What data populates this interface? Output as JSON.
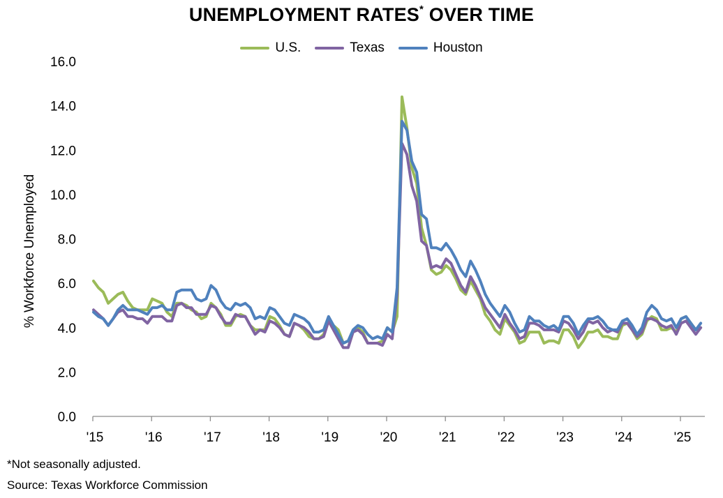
{
  "title": "UNEMPLOYMENT RATES",
  "title_sup": "*",
  "title_suffix": " OVER TIME",
  "footnote": "*Not seasonally adjusted.",
  "source": "Source: Texas Workforce Commission",
  "colors": {
    "us": "#9bbb59",
    "texas": "#8064a2",
    "houston": "#4f81bd"
  },
  "chart_data": {
    "type": "line",
    "ylabel": "% Workforce Unemployed",
    "ylim": [
      0,
      16
    ],
    "yticks": [
      "0.0",
      "2.0",
      "4.0",
      "6.0",
      "8.0",
      "10.0",
      "12.0",
      "14.0",
      "16.0"
    ],
    "xticks": [
      "'15",
      "'16",
      "'17",
      "'18",
      "'19",
      "'20",
      "'21",
      "'22",
      "'23",
      "'24",
      "'25"
    ],
    "x_start": "2015-01",
    "x_end": "2025-05",
    "grid": false,
    "legend_position": "top-center",
    "series": [
      {
        "name": "U.S.",
        "key": "us",
        "values": [
          6.1,
          5.8,
          5.6,
          5.1,
          5.3,
          5.5,
          5.6,
          5.2,
          4.9,
          4.8,
          4.8,
          4.8,
          5.3,
          5.2,
          5.1,
          4.7,
          4.5,
          5.1,
          5.1,
          5.0,
          4.8,
          4.7,
          4.4,
          4.5,
          5.1,
          4.9,
          4.6,
          4.1,
          4.1,
          4.5,
          4.6,
          4.5,
          4.1,
          3.9,
          3.9,
          3.9,
          4.5,
          4.4,
          4.1,
          3.7,
          3.6,
          4.2,
          4.1,
          3.9,
          3.6,
          3.5,
          3.5,
          3.7,
          4.4,
          4.1,
          3.9,
          3.3,
          3.4,
          3.8,
          4.0,
          3.8,
          3.3,
          3.3,
          3.3,
          3.4,
          4.0,
          3.8,
          4.5,
          14.4,
          13.0,
          11.2,
          10.5,
          8.5,
          7.7,
          6.6,
          6.4,
          6.5,
          6.8,
          6.6,
          6.2,
          5.7,
          5.5,
          6.1,
          5.7,
          5.3,
          4.6,
          4.3,
          3.9,
          3.7,
          4.4,
          4.1,
          3.8,
          3.3,
          3.4,
          3.8,
          3.8,
          3.8,
          3.3,
          3.4,
          3.4,
          3.3,
          3.9,
          3.9,
          3.6,
          3.1,
          3.4,
          3.8,
          3.8,
          3.9,
          3.6,
          3.6,
          3.5,
          3.5,
          4.1,
          4.2,
          3.9,
          3.5,
          3.7,
          4.3,
          4.5,
          4.4,
          3.9,
          3.9,
          4.0,
          3.8,
          4.4,
          4.5,
          4.2,
          3.9,
          4.0
        ]
      },
      {
        "name": "Texas",
        "key": "texas",
        "values": [
          4.8,
          4.6,
          4.4,
          4.1,
          4.4,
          4.7,
          4.8,
          4.5,
          4.5,
          4.4,
          4.4,
          4.2,
          4.5,
          4.5,
          4.5,
          4.3,
          4.3,
          5.0,
          5.1,
          4.9,
          4.9,
          4.6,
          4.6,
          4.6,
          5.0,
          4.9,
          4.5,
          4.2,
          4.2,
          4.6,
          4.5,
          4.5,
          4.1,
          3.7,
          3.9,
          3.8,
          4.3,
          4.2,
          4.0,
          3.7,
          3.6,
          4.2,
          4.1,
          4.0,
          3.8,
          3.5,
          3.5,
          3.6,
          4.3,
          3.9,
          3.5,
          3.1,
          3.1,
          3.8,
          3.9,
          3.7,
          3.3,
          3.3,
          3.3,
          3.2,
          3.7,
          3.5,
          5.5,
          12.3,
          11.8,
          10.4,
          9.7,
          7.9,
          7.7,
          6.7,
          6.8,
          6.7,
          7.1,
          6.9,
          6.4,
          5.9,
          5.6,
          6.3,
          5.9,
          5.4,
          4.9,
          4.6,
          4.3,
          4.0,
          4.6,
          4.2,
          3.9,
          3.5,
          3.6,
          4.2,
          4.2,
          4.1,
          3.9,
          3.9,
          3.9,
          3.8,
          4.3,
          4.2,
          3.9,
          3.5,
          3.8,
          4.3,
          4.2,
          4.3,
          4.0,
          3.8,
          3.9,
          3.8,
          4.2,
          4.2,
          3.9,
          3.6,
          3.8,
          4.4,
          4.4,
          4.3,
          4.1,
          4.0,
          4.1,
          3.7,
          4.2,
          4.3,
          4.0,
          3.7,
          4.0
        ]
      },
      {
        "name": "Houston",
        "key": "houston",
        "values": [
          4.7,
          4.5,
          4.4,
          4.1,
          4.4,
          4.8,
          5.0,
          4.8,
          4.8,
          4.8,
          4.7,
          4.6,
          4.9,
          4.9,
          5.0,
          4.8,
          4.8,
          5.6,
          5.7,
          5.7,
          5.7,
          5.3,
          5.2,
          5.3,
          5.9,
          5.7,
          5.2,
          4.9,
          4.8,
          5.1,
          5.0,
          5.1,
          4.9,
          4.4,
          4.5,
          4.4,
          4.9,
          4.8,
          4.5,
          4.2,
          4.1,
          4.6,
          4.5,
          4.4,
          4.2,
          3.8,
          3.8,
          3.9,
          4.5,
          4.1,
          3.7,
          3.3,
          3.4,
          3.9,
          4.1,
          4.0,
          3.7,
          3.5,
          3.6,
          3.5,
          4.0,
          3.8,
          5.8,
          13.3,
          12.9,
          11.5,
          11.0,
          9.1,
          8.9,
          7.6,
          7.6,
          7.5,
          7.8,
          7.5,
          7.1,
          6.6,
          6.3,
          7.0,
          6.6,
          6.1,
          5.5,
          5.1,
          4.8,
          4.5,
          5.0,
          4.7,
          4.2,
          3.8,
          3.9,
          4.5,
          4.3,
          4.3,
          4.1,
          4.0,
          4.1,
          3.9,
          4.5,
          4.5,
          4.2,
          3.7,
          4.1,
          4.4,
          4.4,
          4.5,
          4.3,
          4.0,
          3.9,
          3.9,
          4.3,
          4.4,
          4.1,
          3.7,
          4.0,
          4.7,
          5.0,
          4.8,
          4.4,
          4.3,
          4.4,
          4.0,
          4.4,
          4.5,
          4.2,
          3.9,
          4.2
        ]
      }
    ]
  }
}
